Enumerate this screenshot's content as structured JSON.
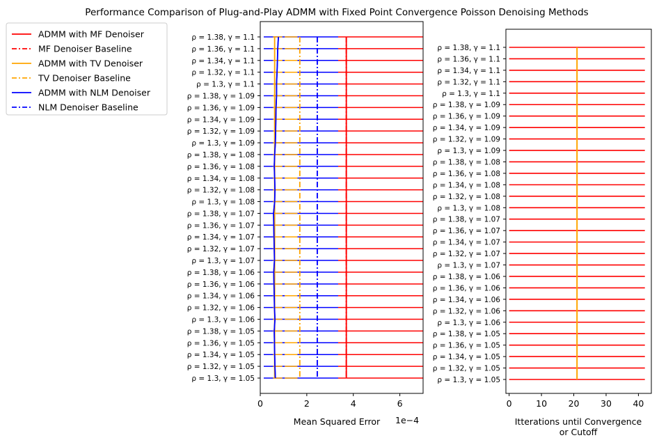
{
  "chart_data": [
    {
      "type": "line",
      "title": "Performance Comparison of Plug-and-Play ADMM with Fixed Point Convergence Poisson Denoising Methods",
      "xlabel": "Mean Squared Error",
      "x_offset_label": "1e−4",
      "xlim": [
        0,
        7
      ],
      "x_ticks": [
        "0",
        "2",
        "4",
        "6"
      ],
      "categories": [
        "ρ = 1.38, γ = 1.1",
        "ρ = 1.36, γ = 1.1",
        "ρ = 1.34, γ = 1.1",
        "ρ = 1.32, γ = 1.1",
        "ρ = 1.3, γ = 1.1",
        "ρ = 1.38, γ = 1.09",
        "ρ = 1.36, γ = 1.09",
        "ρ = 1.34, γ = 1.09",
        "ρ = 1.32, γ = 1.09",
        "ρ = 1.3, γ = 1.09",
        "ρ = 1.38, γ = 1.08",
        "ρ = 1.36, γ = 1.08",
        "ρ = 1.34, γ = 1.08",
        "ρ = 1.32, γ = 1.08",
        "ρ = 1.3, γ = 1.08",
        "ρ = 1.38, γ = 1.07",
        "ρ = 1.36, γ = 1.07",
        "ρ = 1.34, γ = 1.07",
        "ρ = 1.32, γ = 1.07",
        "ρ = 1.3, γ = 1.07",
        "ρ = 1.38, γ = 1.06",
        "ρ = 1.36, γ = 1.06",
        "ρ = 1.34, γ = 1.06",
        "ρ = 1.32, γ = 1.06",
        "ρ = 1.3, γ = 1.06",
        "ρ = 1.38, γ = 1.05",
        "ρ = 1.36, γ = 1.05",
        "ρ = 1.34, γ = 1.05",
        "ρ = 1.32, γ = 1.05",
        "ρ = 1.3, γ = 1.05"
      ],
      "series": [
        {
          "name": "ADMM with MF Denoiser",
          "color": "#ff0000",
          "style": "solid",
          "values": [
            3.7,
            3.7,
            3.7,
            3.7,
            3.7,
            3.7,
            3.7,
            3.7,
            3.7,
            3.7,
            3.7,
            3.7,
            3.7,
            3.7,
            3.7,
            3.7,
            3.7,
            3.7,
            3.7,
            3.7,
            3.7,
            3.7,
            3.7,
            3.7,
            3.7,
            3.7,
            3.7,
            3.7,
            3.7,
            3.7
          ]
        },
        {
          "name": "MF Denoiser Baseline",
          "color": "#ff0000",
          "style": "dashdot",
          "values": [
            3.7,
            3.7,
            3.7,
            3.7,
            3.7,
            3.7,
            3.7,
            3.7,
            3.7,
            3.7,
            3.7,
            3.7,
            3.7,
            3.7,
            3.7,
            3.7,
            3.7,
            3.7,
            3.7,
            3.7,
            3.7,
            3.7,
            3.7,
            3.7,
            3.7,
            3.7,
            3.7,
            3.7,
            3.7,
            3.7
          ]
        },
        {
          "name": "ADMM with TV Denoiser",
          "color": "#ffa500",
          "style": "solid",
          "values": [
            0.62,
            0.62,
            0.62,
            0.62,
            0.62,
            0.62,
            0.62,
            0.62,
            0.62,
            0.62,
            0.62,
            0.62,
            0.62,
            0.62,
            0.62,
            0.62,
            0.62,
            0.62,
            0.62,
            0.62,
            0.62,
            0.62,
            0.62,
            0.62,
            0.62,
            0.62,
            0.62,
            0.62,
            0.62,
            0.62
          ]
        },
        {
          "name": "TV Denoiser Baseline",
          "color": "#ffa500",
          "style": "dashdot",
          "values": [
            1.7,
            1.7,
            1.7,
            1.7,
            1.7,
            1.7,
            1.7,
            1.7,
            1.7,
            1.7,
            1.7,
            1.7,
            1.7,
            1.7,
            1.7,
            1.7,
            1.7,
            1.7,
            1.7,
            1.7,
            1.7,
            1.7,
            1.7,
            1.7,
            1.7,
            1.7,
            1.7,
            1.7,
            1.7,
            1.7
          ]
        },
        {
          "name": "ADMM with NLM Denoiser",
          "color": "#0000ff",
          "style": "solid",
          "values": [
            0.78,
            0.75,
            0.74,
            0.72,
            0.7,
            0.7,
            0.68,
            0.67,
            0.66,
            0.65,
            0.62,
            0.6,
            0.62,
            0.63,
            0.62,
            0.57,
            0.58,
            0.59,
            0.6,
            0.61,
            0.58,
            0.59,
            0.6,
            0.61,
            0.63,
            0.6,
            0.61,
            0.62,
            0.63,
            0.65
          ]
        },
        {
          "name": "NLM Denoiser Baseline",
          "color": "#0000ff",
          "style": "dashdot",
          "values": [
            2.45,
            2.45,
            2.45,
            2.45,
            2.45,
            2.45,
            2.45,
            2.45,
            2.45,
            2.45,
            2.45,
            2.45,
            2.45,
            2.45,
            2.45,
            2.45,
            2.45,
            2.45,
            2.45,
            2.45,
            2.45,
            2.45,
            2.45,
            2.45,
            2.45,
            2.45,
            2.45,
            2.45,
            2.45,
            2.45
          ]
        }
      ],
      "grid": false,
      "legend_placement": "outside-left"
    },
    {
      "type": "line",
      "title": "",
      "xlabel_lines": [
        "Itterations until Convergence",
        "or Cutoff"
      ],
      "xlim": [
        -1,
        44
      ],
      "x_ticks": [
        "0",
        "10",
        "20",
        "30",
        "40"
      ],
      "categories_ref": "same as first chart",
      "series": [
        {
          "name": "ADMM with MF Denoiser",
          "color": "#ff0000",
          "value": 42
        },
        {
          "name": "ADMM with TV Denoiser",
          "color": "#ffa500",
          "value": 21
        }
      ],
      "grid": false
    }
  ]
}
